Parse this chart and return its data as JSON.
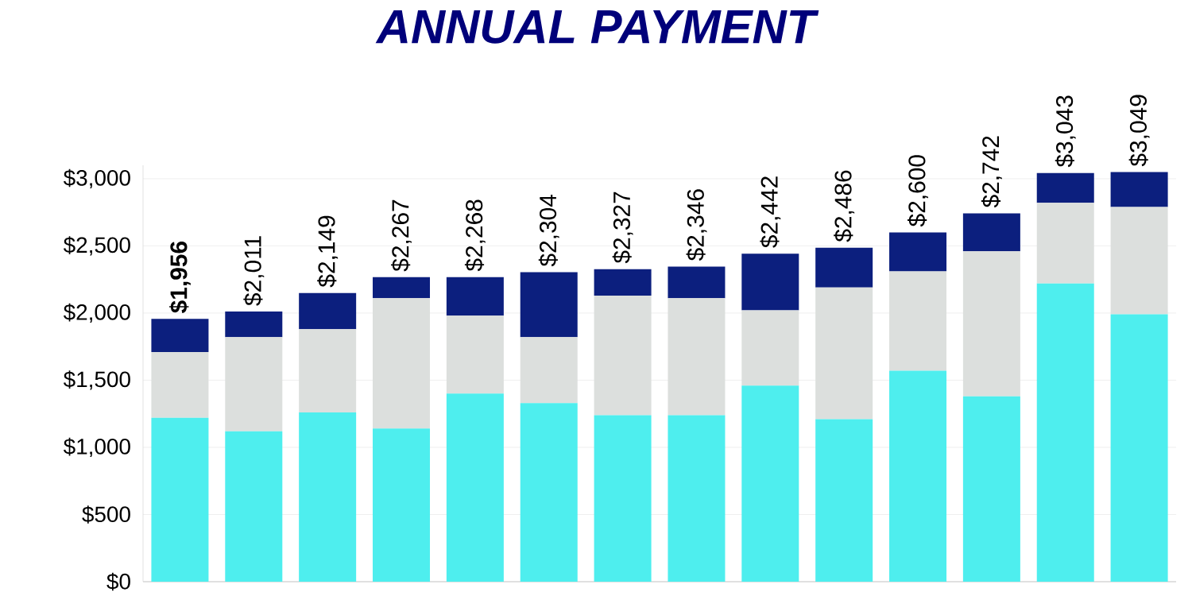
{
  "chart_data": {
    "type": "bar",
    "title": "ANNUAL PAYMENT",
    "stacked": true,
    "categories": [
      null,
      null,
      null,
      null,
      null,
      null,
      null,
      null,
      null,
      null,
      null,
      null,
      null,
      null
    ],
    "series": [
      {
        "color": "#4eeeee",
        "values": [
          1220,
          1120,
          1260,
          1140,
          1400,
          1330,
          1240,
          1240,
          1460,
          1210,
          1570,
          1380,
          2220,
          1990
        ]
      },
      {
        "color": "#dcdfdd",
        "values": [
          490,
          700,
          620,
          970,
          580,
          490,
          890,
          870,
          560,
          980,
          740,
          1080,
          600,
          800
        ]
      },
      {
        "color": "#0c1f7e",
        "values": [
          246,
          191,
          269,
          157,
          288,
          484,
          197,
          236,
          422,
          296,
          290,
          282,
          223,
          259
        ]
      }
    ],
    "totals": [
      "**$1,956**",
      "$2,011",
      "$2,149",
      "$2,267",
      "$2,268",
      "$2,304",
      "$2,327",
      "$2,346",
      "$2,442",
      "$2,486",
      "$2,600",
      "$2,742",
      "$3,043",
      "$3,049"
    ],
    "ylim": [
      0,
      3100
    ],
    "yticks": [
      {
        "value": 0,
        "label": "$0"
      },
      {
        "value": 500,
        "label": "$500"
      },
      {
        "value": 1000,
        "label": "$1,000"
      },
      {
        "value": 1500,
        "label": "$1,500"
      },
      {
        "value": 2000,
        "label": "$2,000"
      },
      {
        "value": 2500,
        "label": "$2,500"
      },
      {
        "value": 3000,
        "label": "$3,000"
      }
    ],
    "grid": "y",
    "tick_labels": "y"
  }
}
